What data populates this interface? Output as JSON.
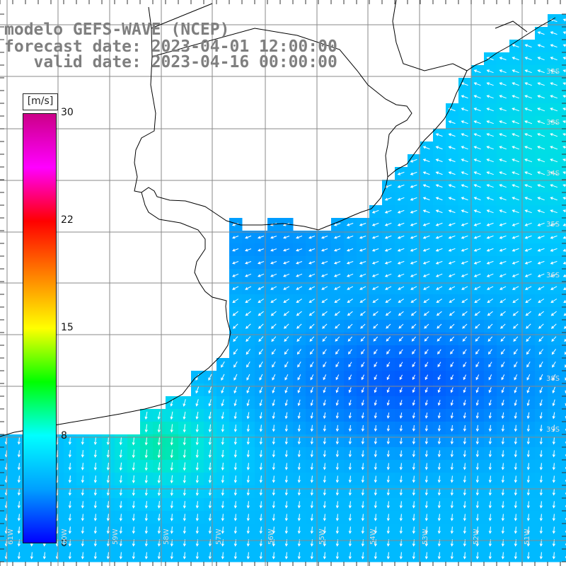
{
  "title": {
    "model": "modelo GEFS-WAVE (NCEP)",
    "forecast": "forecast date: 2023-04-01 12:00:00",
    "valid": "   valid date: 2023-04-16 00:00:00"
  },
  "colorbar": {
    "unit": "[m/s]",
    "ticks": [
      "30",
      "22",
      "15",
      "8",
      "0"
    ],
    "range": [
      0,
      30
    ],
    "colors": [
      "#0000ff",
      "#00a0ff",
      "#00ffff",
      "#00ff00",
      "#ffff00",
      "#ff8000",
      "#ff0000",
      "#ff00ff",
      "#cc0088"
    ]
  },
  "lat_labels": [
    "32S",
    "33S",
    "34S",
    "35S",
    "36S",
    "38S",
    "39S"
  ],
  "lon_labels": [
    "61W",
    "60W",
    "59W",
    "58W",
    "57W",
    "56W",
    "55W",
    "54W",
    "53W",
    "52W",
    "51W"
  ],
  "wind_field": {
    "colors": {
      "land": "#ffffff",
      "grid": "#7f7f7f",
      "coast": "#000000",
      "arrow": "#ffffff"
    }
  }
}
